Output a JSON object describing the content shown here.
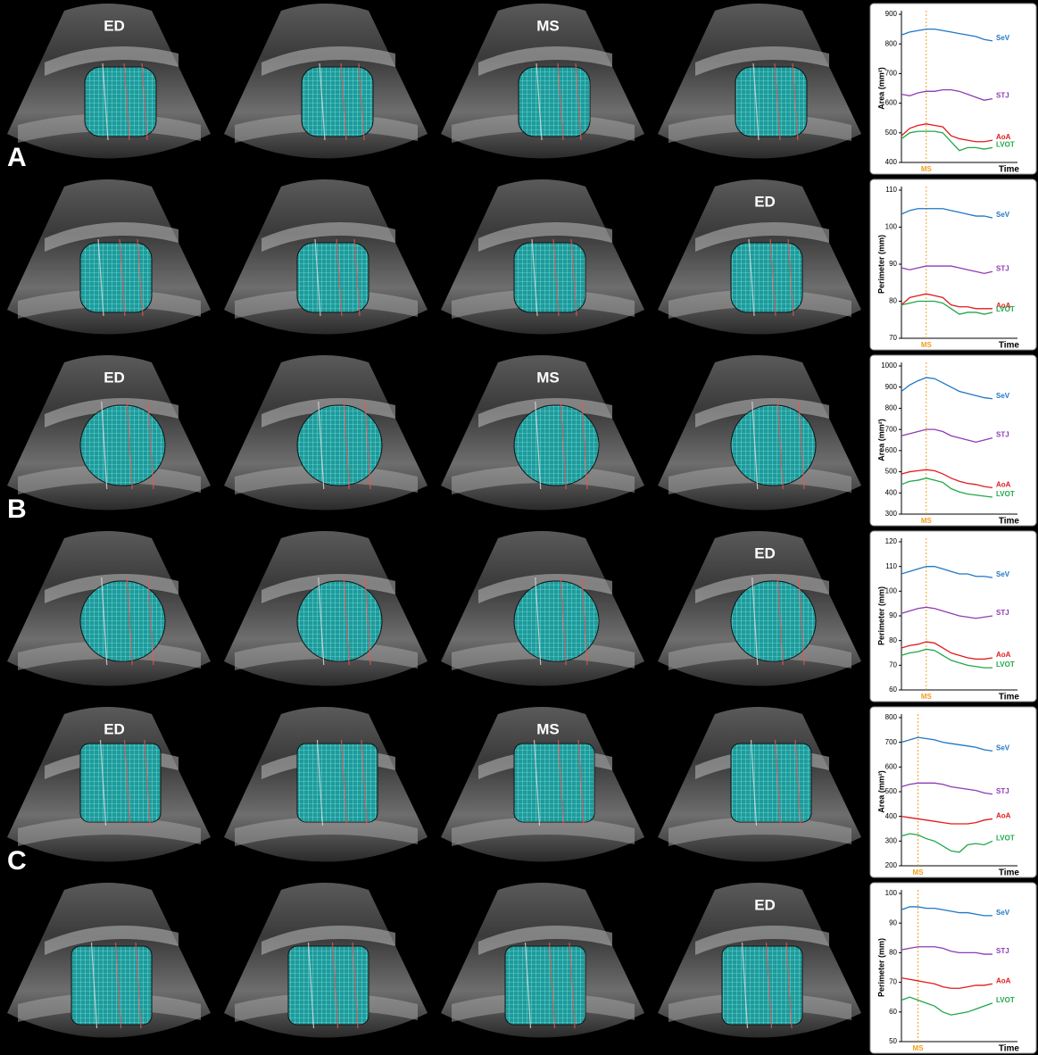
{
  "panels": [
    "A",
    "B",
    "C"
  ],
  "image_rows": [
    [
      "ED",
      null,
      "MS",
      null
    ],
    [
      null,
      null,
      null,
      "ED"
    ],
    [
      "ED",
      null,
      "MS",
      null
    ],
    [
      null,
      null,
      null,
      "ED"
    ],
    [
      "ED",
      null,
      "MS",
      null
    ],
    [
      null,
      null,
      null,
      "ED"
    ]
  ],
  "chart_data": [
    {
      "type": "line",
      "ylabel": "Area (mm²)",
      "xlabel": "Time",
      "categories": [
        null,
        null,
        null,
        null,
        null,
        null,
        null,
        null,
        null,
        null,
        null,
        null
      ],
      "ylim": [
        400,
        900
      ],
      "yticks": [
        400,
        500,
        600,
        700,
        800,
        900
      ],
      "annotations": [
        {
          "text": "MS",
          "x": 3
        }
      ],
      "series": [
        {
          "name": "SeV",
          "color": "#1f77c4",
          "values": [
            830,
            840,
            845,
            850,
            850,
            845,
            840,
            835,
            830,
            825,
            815,
            810
          ]
        },
        {
          "name": "STJ",
          "color": "#8e3bb5",
          "values": [
            630,
            625,
            635,
            640,
            640,
            645,
            645,
            640,
            630,
            620,
            610,
            615
          ]
        },
        {
          "name": "AoA",
          "color": "#e31a1c",
          "values": [
            490,
            515,
            525,
            530,
            525,
            520,
            490,
            480,
            475,
            470,
            470,
            475
          ]
        },
        {
          "name": "LVOT",
          "color": "#1fa84a",
          "values": [
            480,
            500,
            505,
            505,
            505,
            500,
            470,
            440,
            450,
            450,
            445,
            450
          ]
        }
      ]
    },
    {
      "type": "line",
      "ylabel": "Perimeter (mm)",
      "xlabel": "Time",
      "categories": [
        null,
        null,
        null,
        null,
        null,
        null,
        null,
        null,
        null,
        null,
        null,
        null
      ],
      "ylim": [
        70,
        110
      ],
      "yticks": [
        70,
        80,
        90,
        100,
        110
      ],
      "annotations": [
        {
          "text": "MS",
          "x": 3
        }
      ],
      "series": [
        {
          "name": "SeV",
          "color": "#1f77c4",
          "values": [
            103.5,
            104.5,
            105,
            105,
            105,
            105,
            104.5,
            104,
            103.5,
            103,
            103,
            102.5
          ]
        },
        {
          "name": "STJ",
          "color": "#8e3bb5",
          "values": [
            89,
            88.5,
            89,
            89.5,
            89.5,
            89.5,
            89.5,
            89,
            88.5,
            88,
            87.5,
            88
          ]
        },
        {
          "name": "AoA",
          "color": "#e31a1c",
          "values": [
            79,
            81,
            81.5,
            82,
            81.5,
            81,
            79,
            78.5,
            78.5,
            78,
            78,
            78
          ]
        },
        {
          "name": "LVOT",
          "color": "#1fa84a",
          "values": [
            79,
            79.5,
            80,
            80,
            80,
            79.5,
            78,
            76.5,
            77,
            77,
            76.5,
            77
          ]
        }
      ]
    },
    {
      "type": "line",
      "ylabel": "Area (mm²)",
      "xlabel": "Time",
      "categories": [
        null,
        null,
        null,
        null,
        null,
        null,
        null,
        null,
        null,
        null,
        null,
        null
      ],
      "ylim": [
        300,
        1000
      ],
      "yticks": [
        300,
        400,
        500,
        600,
        700,
        800,
        900,
        1000
      ],
      "annotations": [
        {
          "text": "MS",
          "x": 3
        }
      ],
      "series": [
        {
          "name": "SeV",
          "color": "#1f77c4",
          "values": [
            880,
            910,
            930,
            945,
            940,
            920,
            900,
            880,
            870,
            860,
            850,
            845
          ]
        },
        {
          "name": "STJ",
          "color": "#8e3bb5",
          "values": [
            670,
            680,
            690,
            700,
            700,
            690,
            670,
            660,
            650,
            640,
            650,
            660
          ]
        },
        {
          "name": "AoA",
          "color": "#e31a1c",
          "values": [
            490,
            500,
            505,
            510,
            505,
            490,
            470,
            455,
            445,
            440,
            430,
            425
          ]
        },
        {
          "name": "LVOT",
          "color": "#1fa84a",
          "values": [
            440,
            455,
            460,
            470,
            460,
            450,
            420,
            405,
            395,
            390,
            385,
            380
          ]
        }
      ]
    },
    {
      "type": "line",
      "ylabel": "Perimeter (mm)",
      "xlabel": "Time",
      "categories": [
        null,
        null,
        null,
        null,
        null,
        null,
        null,
        null,
        null,
        null,
        null,
        null
      ],
      "ylim": [
        60,
        120
      ],
      "yticks": [
        60,
        70,
        80,
        90,
        100,
        110,
        120
      ],
      "annotations": [
        {
          "text": "MS",
          "x": 3
        }
      ],
      "series": [
        {
          "name": "SeV",
          "color": "#1f77c4",
          "values": [
            107,
            108,
            109,
            110,
            110,
            109,
            108,
            107,
            107,
            106,
            106,
            105.5
          ]
        },
        {
          "name": "STJ",
          "color": "#8e3bb5",
          "values": [
            91,
            92,
            93,
            93.5,
            93,
            92,
            91,
            90,
            89.5,
            89,
            89.5,
            90
          ]
        },
        {
          "name": "AoA",
          "color": "#e31a1c",
          "values": [
            77,
            78,
            78.5,
            79.5,
            79,
            77,
            75,
            74,
            73,
            72.5,
            72.5,
            73
          ]
        },
        {
          "name": "LVOT",
          "color": "#1fa84a",
          "values": [
            74,
            75,
            75.5,
            76.5,
            76,
            74,
            72,
            71,
            70,
            69.5,
            69,
            69
          ]
        }
      ]
    },
    {
      "type": "line",
      "ylabel": "Area (mm²)",
      "xlabel": "Time",
      "categories": [
        null,
        null,
        null,
        null,
        null,
        null,
        null,
        null,
        null,
        null,
        null,
        null
      ],
      "ylim": [
        200,
        800
      ],
      "yticks": [
        200,
        300,
        400,
        500,
        600,
        700,
        800
      ],
      "annotations": [
        {
          "text": "MS",
          "x": 2
        }
      ],
      "series": [
        {
          "name": "SeV",
          "color": "#1f77c4",
          "values": [
            700,
            710,
            720,
            715,
            710,
            700,
            695,
            690,
            685,
            680,
            670,
            665
          ]
        },
        {
          "name": "STJ",
          "color": "#8e3bb5",
          "values": [
            520,
            530,
            535,
            535,
            535,
            530,
            520,
            515,
            510,
            505,
            495,
            490
          ]
        },
        {
          "name": "AoA",
          "color": "#e31a1c",
          "values": [
            400,
            395,
            390,
            385,
            380,
            375,
            370,
            370,
            370,
            375,
            385,
            390
          ]
        },
        {
          "name": "LVOT",
          "color": "#1fa84a",
          "values": [
            320,
            330,
            325,
            310,
            300,
            280,
            260,
            255,
            285,
            290,
            285,
            300
          ]
        }
      ]
    },
    {
      "type": "line",
      "ylabel": "Perimeter (mm)",
      "xlabel": "Time",
      "categories": [
        null,
        null,
        null,
        null,
        null,
        null,
        null,
        null,
        null,
        null,
        null,
        null
      ],
      "ylim": [
        50,
        100
      ],
      "yticks": [
        50,
        60,
        70,
        80,
        90,
        100
      ],
      "annotations": [
        {
          "text": "MS",
          "x": 2
        }
      ],
      "series": [
        {
          "name": "SeV",
          "color": "#1f77c4",
          "values": [
            94.5,
            95.5,
            95.5,
            95,
            95,
            94.5,
            94,
            93.5,
            93.5,
            93,
            92.5,
            92.5
          ]
        },
        {
          "name": "STJ",
          "color": "#8e3bb5",
          "values": [
            81,
            81.5,
            82,
            82,
            82,
            81.5,
            80.5,
            80,
            80,
            80,
            79.5,
            79.5
          ]
        },
        {
          "name": "AoA",
          "color": "#e31a1c",
          "values": [
            71.5,
            71,
            70.5,
            70,
            69.5,
            68.5,
            68,
            68,
            68.5,
            69,
            69,
            69.5
          ]
        },
        {
          "name": "LVOT",
          "color": "#1fa84a",
          "values": [
            64,
            65,
            64,
            63,
            62,
            60,
            59,
            59.5,
            60,
            61,
            62,
            63
          ]
        }
      ]
    }
  ]
}
